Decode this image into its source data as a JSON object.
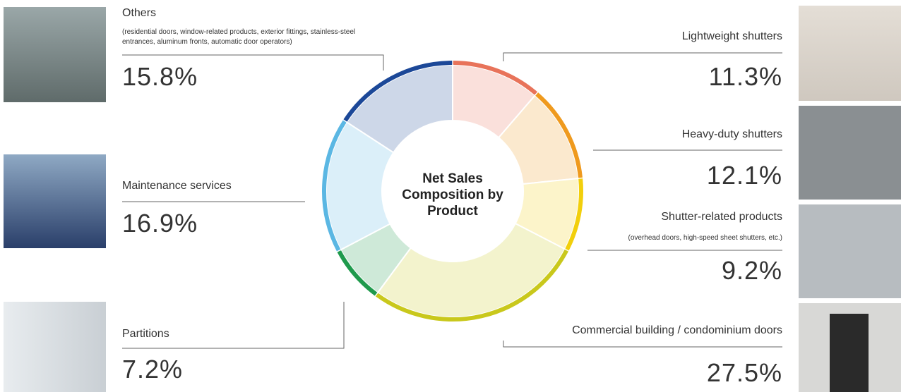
{
  "chart_data": {
    "type": "pie",
    "donut": true,
    "title": "Net Sales Composition by Product",
    "categories": [
      "Lightweight shutters",
      "Heavy-duty shutters",
      "Shutter-related products",
      "Commercial building / condominium doors",
      "Partitions",
      "Maintenance services",
      "Others"
    ],
    "notes": [
      null,
      null,
      "(overhead doors, high-speed sheet shutters, etc.)",
      null,
      null,
      null,
      "(residential doors, window-related products, exterior fittings, stainless-steel entrances, aluminum fronts, automatic door operators)"
    ],
    "values": [
      11.3,
      12.1,
      9.2,
      27.5,
      7.2,
      16.9,
      15.8
    ],
    "value_labels": [
      "11.3%",
      "12.1%",
      "9.2%",
      "27.5%",
      "7.2%",
      "16.9%",
      "15.8%"
    ],
    "colors": [
      "#e8735a",
      "#ef9a1e",
      "#f2cf0c",
      "#c9c81c",
      "#1f9a4c",
      "#5bb7e3",
      "#1c4898"
    ]
  }
}
